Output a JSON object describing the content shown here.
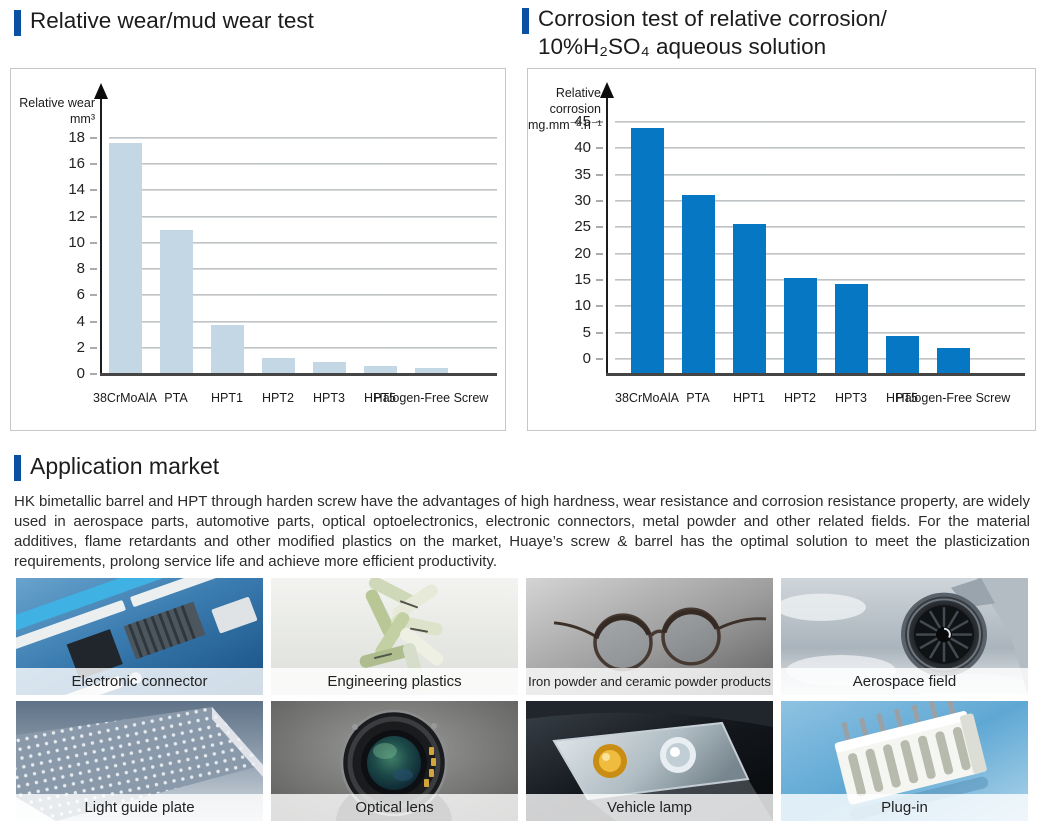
{
  "colors": {
    "accent_blue": "#0b51a3",
    "wear_bar": "#c3d7e5",
    "corrosion_bar": "#0677c2",
    "panel_border": "#c4c8cb"
  },
  "headers": {
    "wear_title": "Relative wear/mud wear test",
    "corrosion_title_line1": "Corrosion test of relative corrosion/",
    "corrosion_title_line2": "10%H₂SO₄ aqueous solution",
    "application_title": "Application market"
  },
  "application": {
    "paragraph": "HK bimetallic barrel and HPT through harden screw have the advantages of high hardness, wear resistance and corrosion resistance property, are widely used in aerospace parts, automotive parts, optical optoelectronics, electronic connectors, metal powder and other related fields. For the material additives, flame retardants and other modified plastics on the market, Huaye’s screw & barrel has the optimal solution to meet the plasticization requirements, prolong service life and achieve more efficient productivity."
  },
  "chart_data": [
    {
      "type": "bar",
      "title": "Relative wear/mud wear test",
      "ylabel": [
        "Relative wear",
        "mm³"
      ],
      "xlabel": "",
      "categories": [
        "38CrMoAlA",
        "PTA",
        "HPT1",
        "HPT2",
        "HPT3",
        "HPT5",
        "Halogen-Free Screw"
      ],
      "values": [
        17.6,
        11.0,
        3.7,
        1.2,
        0.9,
        0.6,
        0.45
      ],
      "ylim": [
        0,
        18
      ],
      "ytick_step": 2,
      "bar_color": "#c3d7e5",
      "grid": true,
      "legend": "none"
    },
    {
      "type": "bar",
      "title": "Corrosion test of relative corrosion/10%H₂SO₄ aqueous solution",
      "ylabel": [
        "Relative corrosion",
        "mg.mm⁻².h⁻¹"
      ],
      "xlabel": "",
      "categories": [
        "38CrMoAlA",
        "PTA",
        "HPT1",
        "HPT2",
        "HPT3",
        "HPT5",
        "Halogen-Free Screw"
      ],
      "values": [
        43.8,
        31.2,
        25.7,
        15.3,
        14.2,
        4.3,
        2.1
      ],
      "ylim": [
        0,
        45
      ],
      "ytick_step": 5,
      "bar_color": "#0677c2",
      "grid": true,
      "legend": "none"
    }
  ],
  "tiles": [
    {
      "label": "Electronic connector",
      "image": "circuit-board"
    },
    {
      "label": "Engineering plastics",
      "image": "plastic-pellets"
    },
    {
      "label": "Iron powder and ceramic powder products",
      "image": "eyeglasses"
    },
    {
      "label": "Aerospace field",
      "image": "jet-engine"
    },
    {
      "label": "Light guide plate",
      "image": "light-guide-plate"
    },
    {
      "label": "Optical lens",
      "image": "camera-lens"
    },
    {
      "label": "Vehicle lamp",
      "image": "car-headlight"
    },
    {
      "label": "Plug-in",
      "image": "connector-plug"
    }
  ]
}
